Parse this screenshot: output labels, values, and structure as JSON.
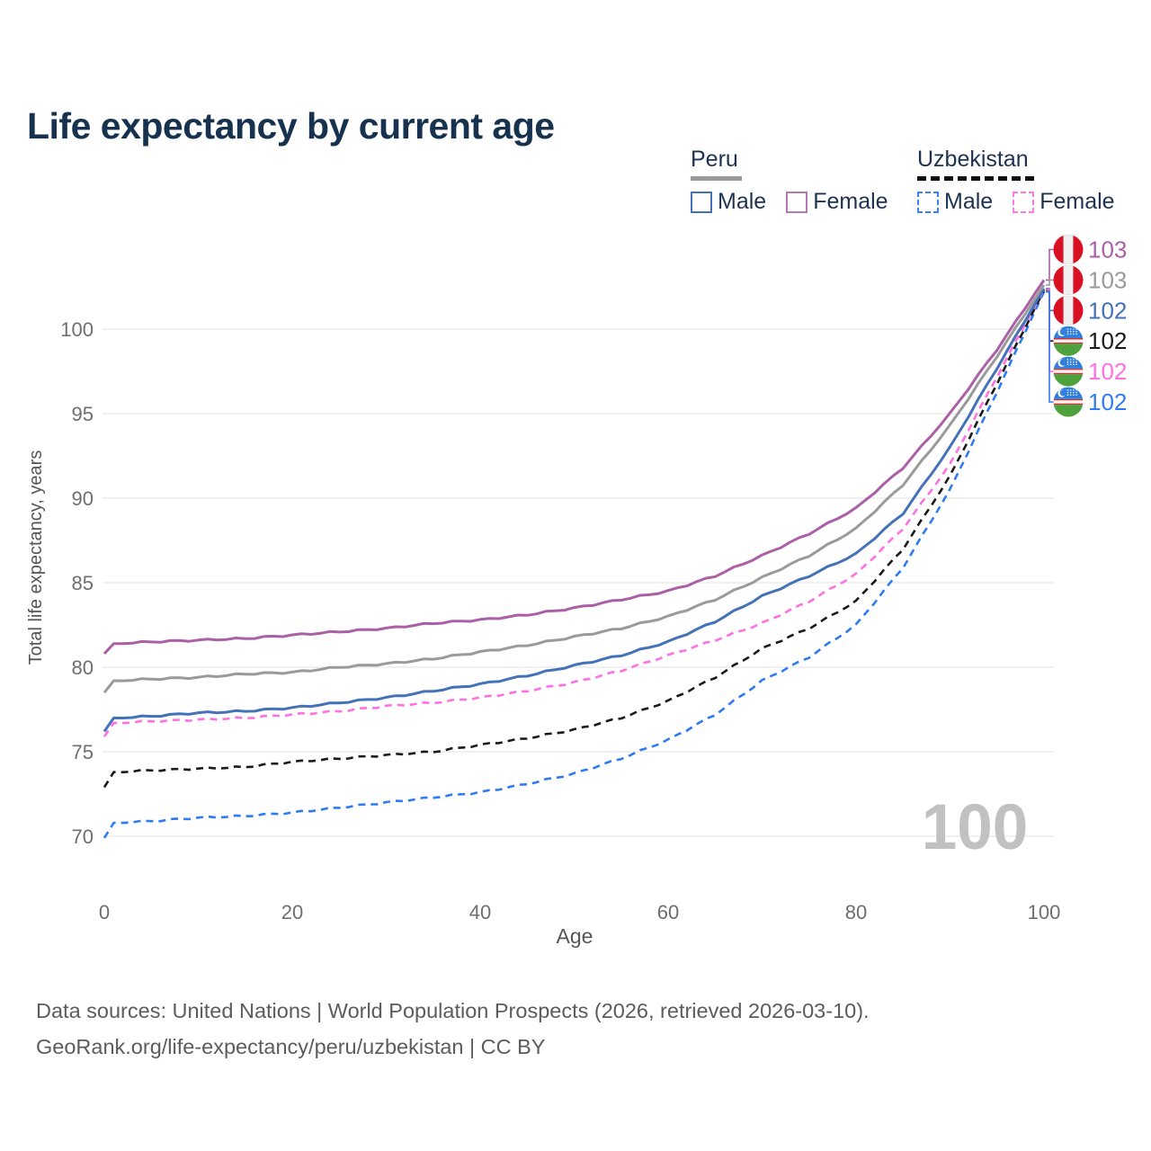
{
  "header": {
    "title": "Life expectancy by current age"
  },
  "legend": {
    "peru": {
      "label": "Peru",
      "male": "Male",
      "female": "Female"
    },
    "uzbekistan": {
      "label": "Uzbekistan",
      "male": "Male",
      "female": "Female"
    }
  },
  "watermark": "100",
  "footer": {
    "line1": "Data sources: United Nations | World Population Prospects (2026, retrieved 2026-03-10).",
    "line2": "GeoRank.org/life-expectancy/peru/uzbekistan | CC BY"
  },
  "colors": {
    "title": "#16324e",
    "text": "#1e3252",
    "axis_text": "#6e6e6e",
    "axis_title": "#555555",
    "grid": "#e8e8e8",
    "watermark": "#c1c1c1",
    "footer": "#5c5c5c",
    "peru_male": "#4472b8",
    "peru_female": "#b678b4",
    "peru_underline": "#999999",
    "uzbekistan_male": "#3b82f6",
    "uzbekistan_female": "#ff7ae0",
    "uzbekistan_underline": "#111111",
    "peru_flag_red": "#d91023",
    "peru_flag_white": "#efefef",
    "uzbekistan_flag_blue": "#2f80dd",
    "uzbekistan_flag_green": "#4ea23c",
    "uzbekistan_flag_red": "#d63031",
    "uzbekistan_flag_white": "#f5f5f5"
  },
  "chart_data": {
    "type": "line",
    "title": "Life expectancy by current age",
    "xlabel": "Age",
    "ylabel": "Total life expectancy, years",
    "xlim": [
      0,
      100
    ],
    "ylim": [
      69,
      104
    ],
    "x_ticks": [
      0,
      20,
      40,
      60,
      80,
      100
    ],
    "y_ticks": [
      70,
      75,
      80,
      85,
      90,
      95,
      100
    ],
    "grid": "horizontal-only",
    "legend_position": "top-right",
    "x": [
      0,
      1,
      5,
      10,
      15,
      20,
      25,
      30,
      35,
      40,
      45,
      50,
      55,
      60,
      65,
      70,
      75,
      80,
      85,
      90,
      95,
      100
    ],
    "series": [
      {
        "name": "Peru Female",
        "country": "Peru",
        "sex": "Female",
        "style": "solid",
        "color": "#ab5fa7",
        "end_label": "103",
        "flag_icon": "peru-flag-icon",
        "values": [
          80.8,
          81.4,
          81.5,
          81.6,
          81.7,
          81.9,
          82.1,
          82.3,
          82.6,
          82.8,
          83.1,
          83.5,
          84.0,
          84.5,
          85.4,
          86.6,
          87.9,
          89.4,
          91.8,
          95.0,
          98.8,
          102.9
        ]
      },
      {
        "name": "Peru Both sexes",
        "country": "Peru",
        "sex": "Both",
        "style": "solid",
        "color": "#9a9a9a",
        "end_label": "103",
        "flag_icon": "peru-flag-icon",
        "values": [
          78.5,
          79.2,
          79.3,
          79.4,
          79.6,
          79.7,
          80.0,
          80.2,
          80.5,
          80.9,
          81.3,
          81.8,
          82.3,
          83.0,
          84.0,
          85.3,
          86.6,
          88.2,
          90.8,
          94.3,
          98.4,
          102.6
        ]
      },
      {
        "name": "Peru Male",
        "country": "Peru",
        "sex": "Male",
        "style": "solid",
        "color": "#4472b8",
        "end_label": "102",
        "flag_icon": "peru-flag-icon",
        "values": [
          76.2,
          77.0,
          77.1,
          77.3,
          77.4,
          77.6,
          77.9,
          78.2,
          78.6,
          79.0,
          79.5,
          80.1,
          80.7,
          81.5,
          82.7,
          84.2,
          85.4,
          86.7,
          89.1,
          93.0,
          97.7,
          102.4
        ]
      },
      {
        "name": "Uzbekistan Both sexes",
        "country": "Uzbekistan",
        "sex": "Both",
        "style": "dashed",
        "color": "#1a1a1a",
        "end_label": "102",
        "flag_icon": "uzbekistan-flag-icon",
        "values": [
          72.9,
          73.8,
          73.9,
          74.0,
          74.1,
          74.4,
          74.6,
          74.8,
          75.0,
          75.4,
          75.8,
          76.3,
          77.0,
          78.0,
          79.4,
          81.1,
          82.3,
          83.9,
          87.0,
          91.3,
          96.8,
          102.3
        ]
      },
      {
        "name": "Uzbekistan Female",
        "country": "Uzbekistan",
        "sex": "Female",
        "style": "dashed",
        "color": "#ff70e2",
        "end_label": "102",
        "flag_icon": "uzbekistan-flag-icon",
        "values": [
          75.9,
          76.7,
          76.8,
          76.9,
          77.0,
          77.2,
          77.4,
          77.7,
          77.9,
          78.2,
          78.6,
          79.1,
          79.8,
          80.7,
          81.6,
          82.6,
          83.9,
          85.5,
          88.2,
          92.0,
          97.2,
          102.35
        ]
      },
      {
        "name": "Uzbekistan Male",
        "country": "Uzbekistan",
        "sex": "Male",
        "style": "dashed",
        "color": "#2f7bf2",
        "end_label": "102",
        "flag_icon": "uzbekistan-flag-icon",
        "values": [
          69.9,
          70.8,
          70.9,
          71.1,
          71.2,
          71.4,
          71.7,
          72.0,
          72.3,
          72.6,
          73.1,
          73.7,
          74.6,
          75.7,
          77.2,
          79.2,
          80.6,
          82.5,
          85.9,
          90.5,
          96.3,
          102.2
        ]
      }
    ]
  }
}
